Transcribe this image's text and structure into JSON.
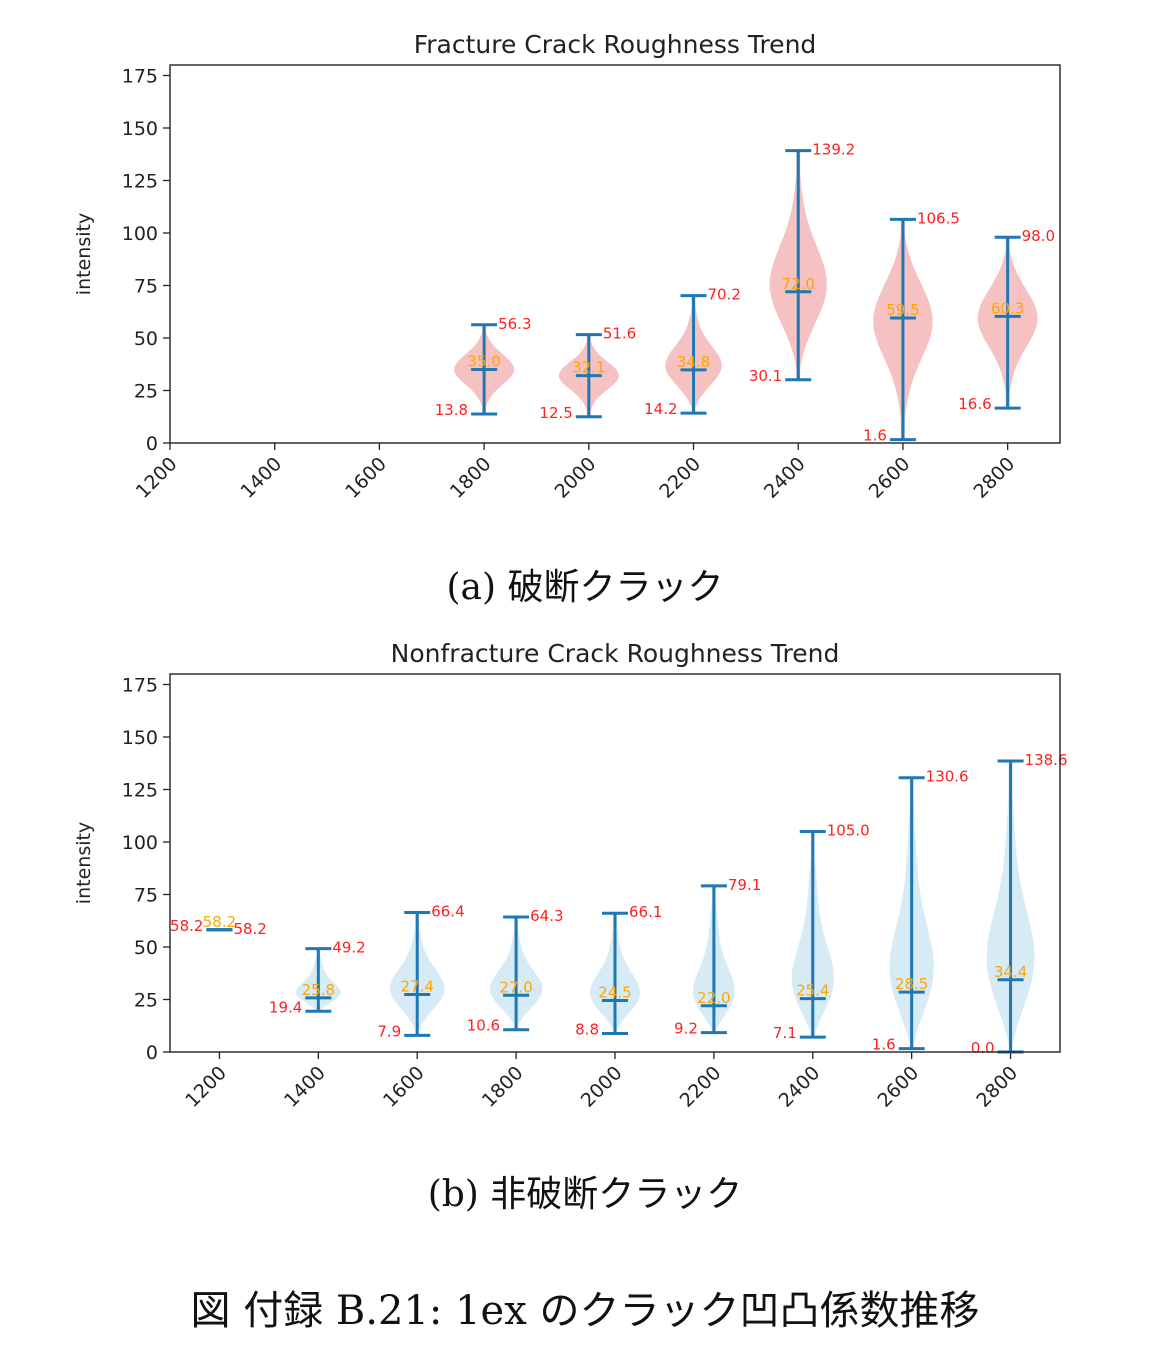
{
  "captions": {
    "a": "(a) 破断クラック",
    "b": "(b) 非破断クラック",
    "figure": "図 付録 B.21: 1ex のクラック凹凸係数推移"
  },
  "colors": {
    "whisker": "#1f77b4",
    "fracture_fill": "#f4b6b6",
    "nonfracture_fill": "#cfe8f3",
    "minmax_label": "#ff2020",
    "median_label": "#ffa500"
  },
  "chart_data": [
    {
      "type": "violin",
      "title": "Fracture Crack Roughness Trend",
      "ylabel": "intensity",
      "xlim": [
        1200,
        2900
      ],
      "ylim": [
        0,
        180
      ],
      "xticks": [
        1200,
        1400,
        1600,
        1800,
        2000,
        2200,
        2400,
        2600,
        2800
      ],
      "yticks": [
        0,
        25,
        50,
        75,
        100,
        125,
        150,
        175
      ],
      "violins": [
        {
          "x": 1800,
          "min": 13.8,
          "median": 35.0,
          "max": 56.3,
          "min_label": "13.8",
          "median_label": "35.0",
          "max_label": "56.3"
        },
        {
          "x": 2000,
          "min": 12.5,
          "median": 32.1,
          "max": 51.6,
          "min_label": "12.5",
          "median_label": "32.1",
          "max_label": "51.6"
        },
        {
          "x": 2200,
          "min": 14.2,
          "median": 34.8,
          "max": 70.2,
          "min_label": "14.2",
          "median_label": "34.8",
          "max_label": "70.2"
        },
        {
          "x": 2400,
          "min": 30.1,
          "median": 72.0,
          "max": 139.2,
          "min_label": "30.1",
          "median_label": "72.0",
          "max_label": "139.2"
        },
        {
          "x": 2600,
          "min": 1.6,
          "median": 59.5,
          "max": 106.5,
          "min_label": "1.6",
          "median_label": "59.5",
          "max_label": "106.5"
        },
        {
          "x": 2800,
          "min": 16.6,
          "median": 60.3,
          "max": 98.0,
          "min_label": "16.6",
          "median_label": "60.3",
          "max_label": "98.0"
        }
      ]
    },
    {
      "type": "violin",
      "title": "Nonfracture Crack Roughness Trend",
      "ylabel": "intensity",
      "xlim": [
        1100,
        2900
      ],
      "ylim": [
        0,
        180
      ],
      "xticks": [
        1200,
        1400,
        1600,
        1800,
        2000,
        2200,
        2400,
        2600,
        2800
      ],
      "yticks": [
        0,
        25,
        50,
        75,
        100,
        125,
        150,
        175
      ],
      "violins": [
        {
          "x": 1200,
          "min": 58.2,
          "median": 58.2,
          "max": 58.2,
          "min_label": "58.2",
          "median_label": "58.2",
          "max_label": "58.2"
        },
        {
          "x": 1400,
          "min": 19.4,
          "median": 25.8,
          "max": 49.2,
          "min_label": "19.4",
          "median_label": "25.8",
          "max_label": "49.2"
        },
        {
          "x": 1600,
          "min": 7.9,
          "median": 27.4,
          "max": 66.4,
          "min_label": "7.9",
          "median_label": "27.4",
          "max_label": "66.4"
        },
        {
          "x": 1800,
          "min": 10.6,
          "median": 27.0,
          "max": 64.3,
          "min_label": "10.6",
          "median_label": "27.0",
          "max_label": "64.3"
        },
        {
          "x": 2000,
          "min": 8.8,
          "median": 24.5,
          "max": 66.1,
          "min_label": "8.8",
          "median_label": "24.5",
          "max_label": "66.1"
        },
        {
          "x": 2200,
          "min": 9.2,
          "median": 22.0,
          "max": 79.1,
          "min_label": "9.2",
          "median_label": "22.0",
          "max_label": "79.1"
        },
        {
          "x": 2400,
          "min": 7.1,
          "median": 25.4,
          "max": 105.0,
          "min_label": "7.1",
          "median_label": "25.4",
          "max_label": "105.0"
        },
        {
          "x": 2600,
          "min": 1.6,
          "median": 28.5,
          "max": 130.6,
          "min_label": "1.6",
          "median_label": "28.5",
          "max_label": "130.6"
        },
        {
          "x": 2800,
          "min": 0.0,
          "median": 34.4,
          "max": 138.6,
          "min_label": "0.0",
          "median_label": "34.4",
          "max_label": "138.6"
        }
      ]
    }
  ]
}
